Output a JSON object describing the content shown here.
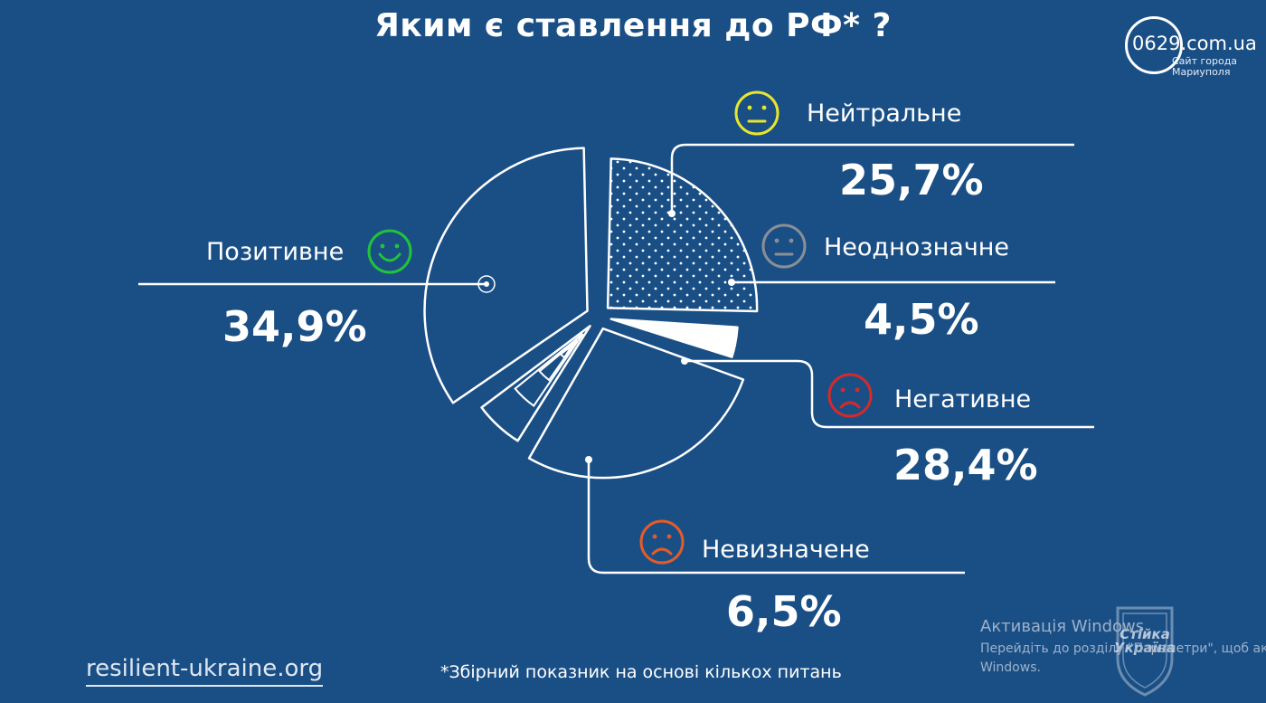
{
  "title": "Яким є ставлення до РФ* ?",
  "chart_data": {
    "type": "pie",
    "title": "Яким є ставлення до РФ* ?",
    "categories": [
      "Позитивне",
      "Нейтральне",
      "Неоднозначне",
      "Негативне",
      "Невизначене"
    ],
    "values": [
      34.9,
      25.7,
      4.5,
      28.4,
      6.5
    ],
    "value_labels": [
      "34,9%",
      "25,7%",
      "4,5%",
      "28,4%",
      "6,5%"
    ],
    "colors": {
      "Позитивне": "#22c23a",
      "Нейтральне": "#e6e62e",
      "Неоднозначне": "#8a8f96",
      "Негативне": "#d42a2a",
      "Невизначене": "#e25c2a"
    }
  },
  "footnote": "*Збірний показник на основі кількох питань",
  "site": "resilient-ukraine.org",
  "logo": {
    "name": "0629.com.ua",
    "tagline_line1": "Сайт города",
    "tagline_line2": "Мариуполя"
  },
  "windows_activation": {
    "title": "Активація Windows",
    "line1": "Перейдіть до розділу \"Параметри\", щоб активувати",
    "line2": "Windows."
  },
  "watermark": {
    "line1": "Стійка",
    "line2": "Україна"
  }
}
